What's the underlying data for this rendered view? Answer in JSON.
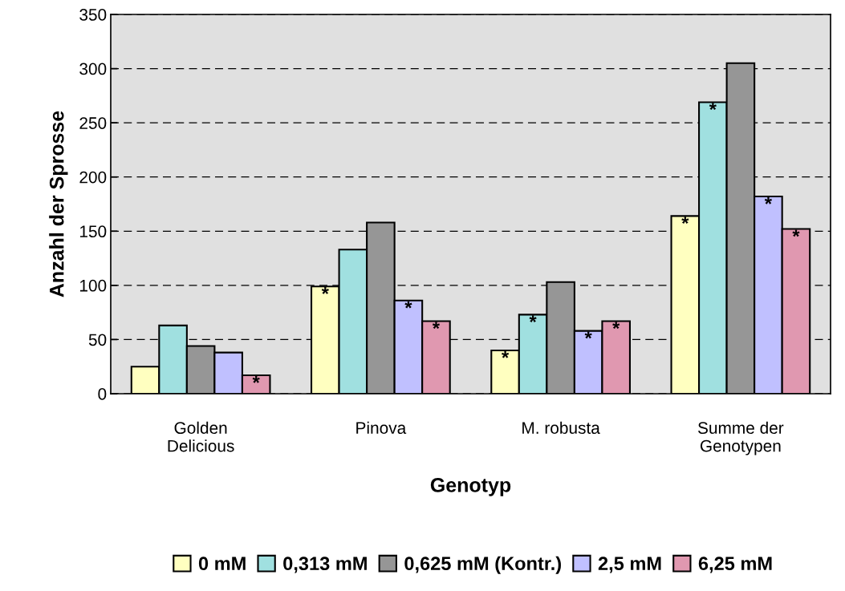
{
  "chart_data": {
    "type": "bar",
    "xlabel": "Genotyp",
    "ylabel": "Anzahl der Sprosse",
    "categories": [
      "Golden\nDelicious",
      "Pinova",
      "M. robusta",
      "Summe der\nGenotypen"
    ],
    "series": [
      {
        "name": "0 mM",
        "color": "#ffffc0",
        "values": [
          25,
          99,
          40,
          164
        ],
        "value_labels": [
          null,
          "*",
          "*",
          "*"
        ]
      },
      {
        "name": "0,313 mM",
        "color": "#a0e0e0",
        "values": [
          63,
          133,
          73,
          269
        ],
        "value_labels": [
          null,
          null,
          "*",
          "*"
        ]
      },
      {
        "name": "0,625 mM (Kontr.)",
        "color": "#969696",
        "values": [
          44,
          158,
          103,
          305
        ],
        "value_labels": [
          null,
          null,
          null,
          null
        ]
      },
      {
        "name": "2,5 mM",
        "color": "#c0c0ff",
        "values": [
          38,
          86,
          58,
          182
        ],
        "value_labels": [
          null,
          "*",
          "*",
          "*"
        ]
      },
      {
        "name": "6,25 mM",
        "color": "#e098b0",
        "values": [
          17,
          67,
          67,
          152
        ],
        "value_labels": [
          "*",
          "*",
          "*",
          "*"
        ]
      }
    ],
    "ylim": [
      0,
      350
    ],
    "yticks": [
      0,
      50,
      100,
      150,
      200,
      250,
      300,
      350
    ],
    "grid": "y",
    "legend": "bottom"
  }
}
